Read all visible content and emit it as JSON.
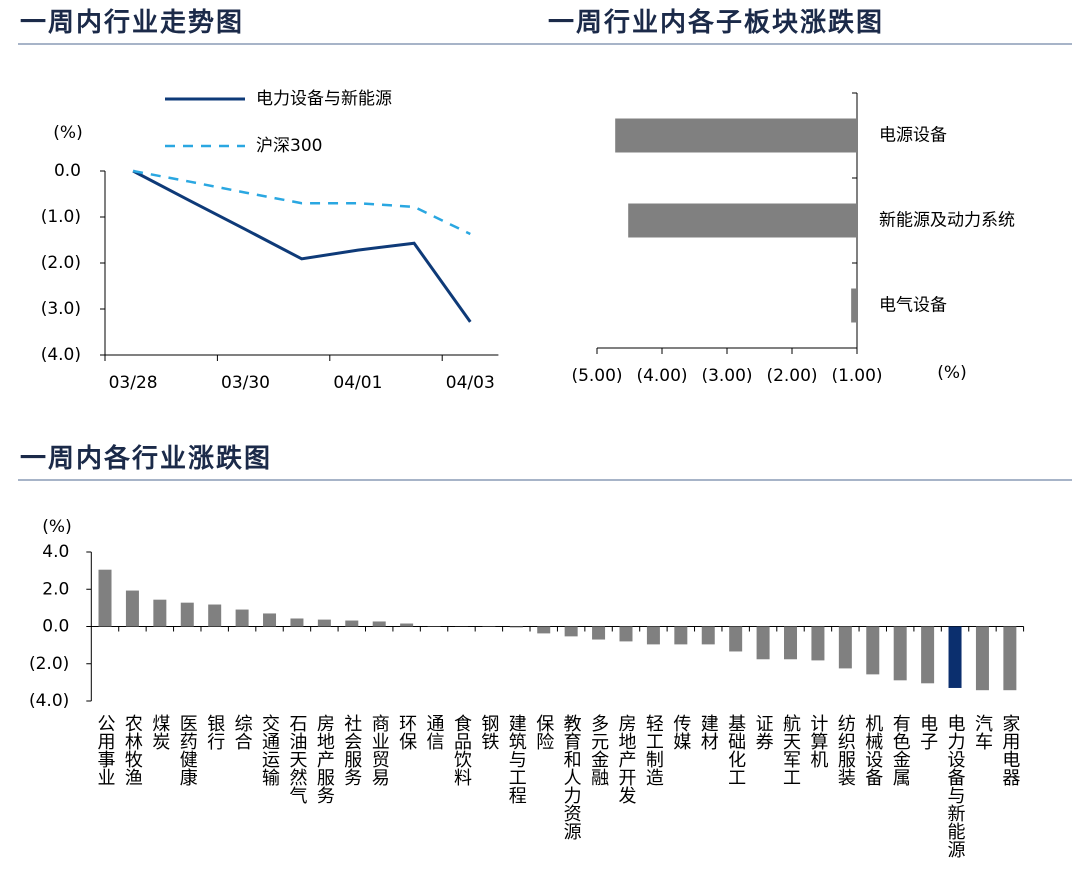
{
  "chart_data": [
    {
      "type": "line",
      "title": "一周内行业走势图",
      "ylabel": "(%)",
      "categories": [
        "03/28",
        null,
        "03/30",
        null,
        "04/01",
        null,
        "04/03"
      ],
      "series": [
        {
          "name": "电力设备与新能源",
          "color": "#0e3a78",
          "values": [
            0,
            -0.64,
            -1.27,
            -1.91,
            -1.72,
            -1.57,
            -3.28
          ]
        },
        {
          "name": "沪深300",
          "color": "#2aa7e1",
          "dashed": true,
          "values": [
            0,
            -0.23,
            -0.47,
            -0.7,
            -0.7,
            -0.78,
            -1.37
          ]
        }
      ],
      "ylim": [
        -4,
        0
      ],
      "yticks": [
        {
          "value": 0,
          "label": "0.0"
        },
        {
          "value": -1,
          "label": "(1.0)"
        },
        {
          "value": -2,
          "label": "(2.0)"
        },
        {
          "value": -3,
          "label": "(3.0)"
        },
        {
          "value": -4,
          "label": "(4.0)"
        }
      ]
    },
    {
      "type": "hbar",
      "title": "一周行业内各子板块涨跌图",
      "xlabel": "(%)",
      "categories": [
        "电源设备",
        "新能源及动力系统",
        "电气设备"
      ],
      "values": [
        -4.72,
        -4.52,
        -1.09
      ],
      "color": "#808080",
      "xlim": [
        -5,
        -1
      ],
      "xticks": [
        {
          "value": -5,
          "label": "(5.00)"
        },
        {
          "value": -4,
          "label": "(4.00)"
        },
        {
          "value": -3,
          "label": "(3.00)"
        },
        {
          "value": -2,
          "label": "(2.00)"
        },
        {
          "value": -1,
          "label": "(1.00)"
        }
      ]
    },
    {
      "type": "bar",
      "title": "一周内各行业涨跌图",
      "ylabel": "(%)",
      "categories": [
        "公用事业",
        "农林牧渔",
        "煤炭",
        "医药健康",
        "银行",
        "综合",
        "交通运输",
        "石油天然气",
        "房地产服务",
        "社会服务",
        "商业贸易",
        "环保",
        "通信",
        "食品饮料",
        "钢铁",
        "建筑与工程",
        "保险",
        "教育和人力资源",
        "多元金融",
        "房地产开发",
        "轻工制造",
        "传媒",
        "建材",
        "基础化工",
        "证券",
        "航天军工",
        "计算机",
        "纺织服装",
        "机械设备",
        "有色金属",
        "电子",
        "电力设备与新能源",
        "汽车",
        "家用电器"
      ],
      "values": [
        3.05,
        1.93,
        1.44,
        1.28,
        1.18,
        0.91,
        0.7,
        0.43,
        0.37,
        0.32,
        0.27,
        0.16,
        0.02,
        -0.01,
        -0.02,
        -0.05,
        -0.37,
        -0.53,
        -0.7,
        -0.8,
        -0.96,
        -0.96,
        -0.96,
        -1.34,
        -1.76,
        -1.76,
        -1.82,
        -2.25,
        -2.57,
        -2.89,
        -3.05,
        -3.3,
        -3.42,
        -3.42
      ],
      "colors": [
        "#808080",
        "#808080",
        "#808080",
        "#808080",
        "#808080",
        "#808080",
        "#808080",
        "#808080",
        "#808080",
        "#808080",
        "#808080",
        "#808080",
        "#808080",
        "#808080",
        "#808080",
        "#808080",
        "#808080",
        "#808080",
        "#808080",
        "#808080",
        "#808080",
        "#808080",
        "#808080",
        "#808080",
        "#808080",
        "#808080",
        "#808080",
        "#808080",
        "#808080",
        "#808080",
        "#808080",
        "#0b2f6e",
        "#808080",
        "#808080"
      ],
      "ylim": [
        -4,
        4
      ],
      "yticks": [
        {
          "value": 4,
          "label": "4.0"
        },
        {
          "value": 2,
          "label": "2.0"
        },
        {
          "value": 0,
          "label": "0.0"
        },
        {
          "value": -2,
          "label": "(2.0)"
        },
        {
          "value": -4,
          "label": "(4.0)"
        }
      ]
    }
  ]
}
